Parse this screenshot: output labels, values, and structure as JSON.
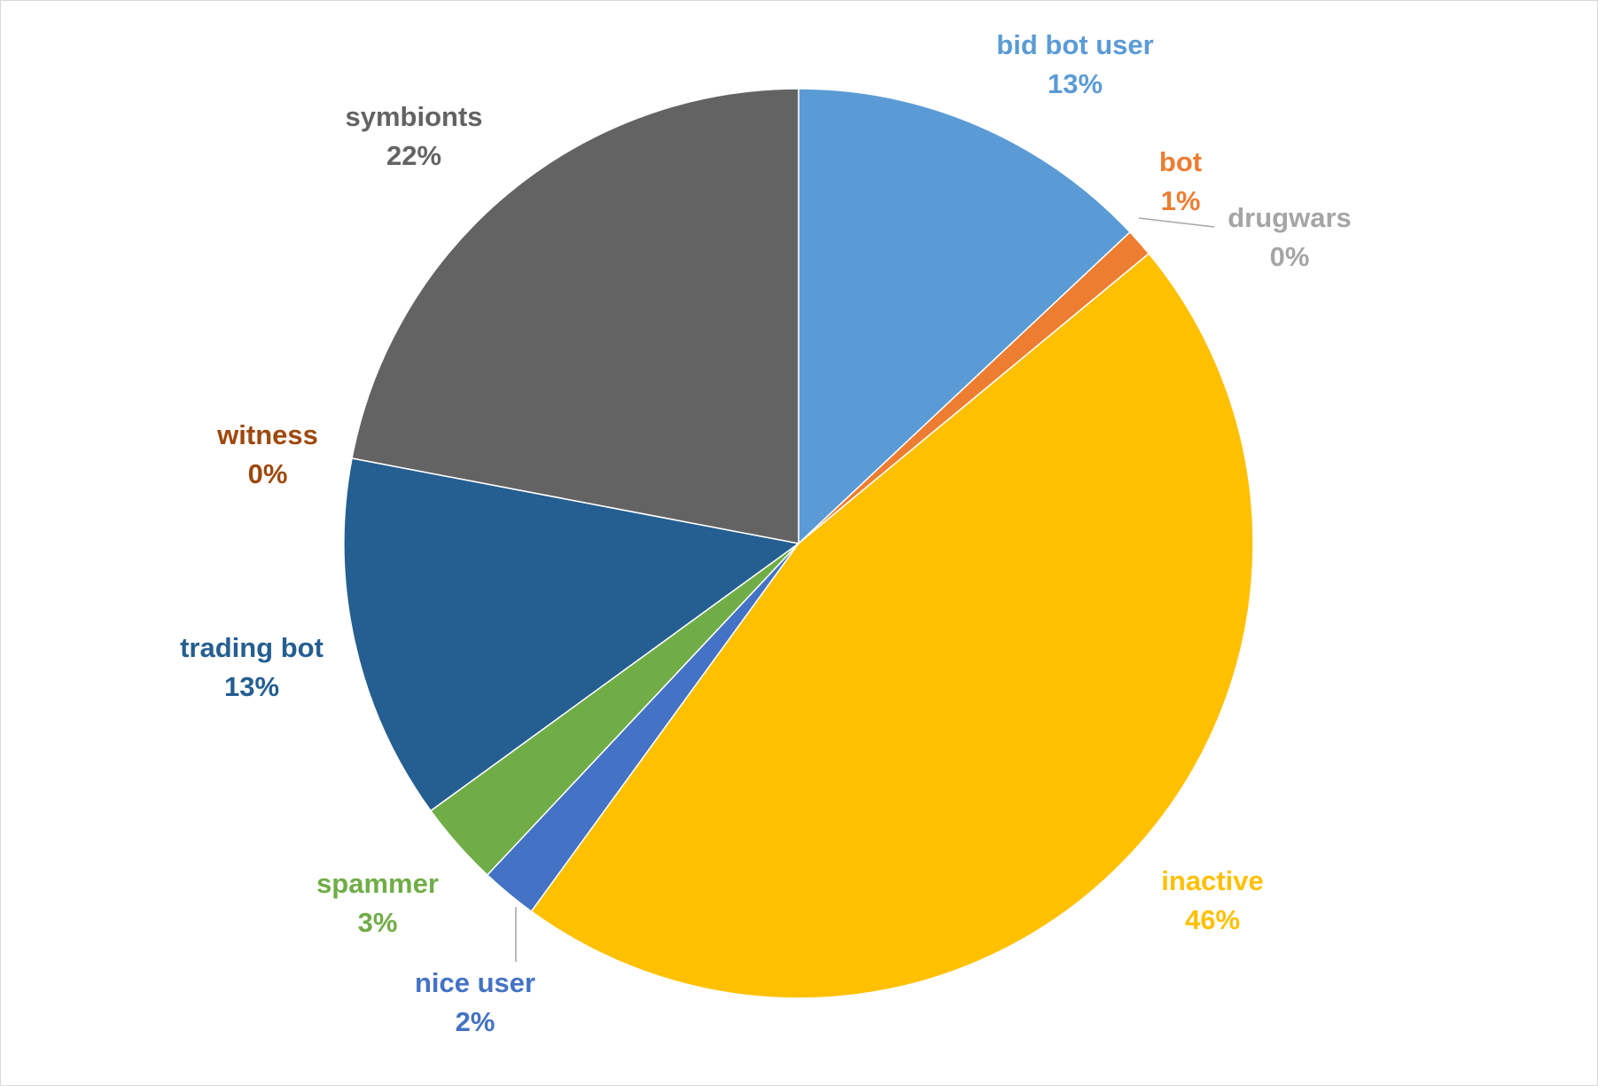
{
  "chart_data": {
    "type": "pie",
    "categories": [
      "bid bot user",
      "bot",
      "drugwars",
      "inactive",
      "nice user",
      "spammer",
      "trading bot",
      "witness",
      "symbionts"
    ],
    "values": [
      13,
      1,
      0,
      46,
      2,
      3,
      13,
      0,
      22
    ],
    "value_labels": [
      "13%",
      "1%",
      "0%",
      "46%",
      "2%",
      "3%",
      "13%",
      "0%",
      "22%"
    ],
    "colors": [
      "#5b9bd5",
      "#ed7d31",
      "#a5a5a5",
      "#ffc000",
      "#4472c4",
      "#70ad47",
      "#255e91",
      "#9e480e",
      "#636363"
    ]
  }
}
